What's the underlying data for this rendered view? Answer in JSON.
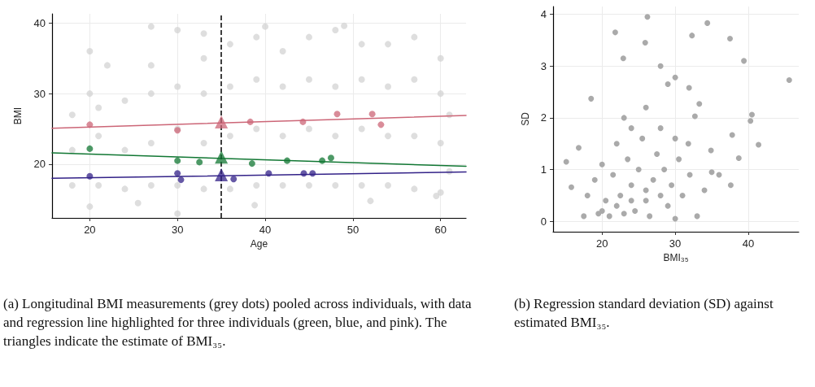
{
  "chart_data": [
    {
      "type": "scatter",
      "xlabel": "Age",
      "ylabel": "BMI",
      "xlim": [
        15.7,
        62.9
      ],
      "ylim": [
        12.4,
        41.3
      ],
      "xticks": [
        20,
        30,
        40,
        50,
        60
      ],
      "yticks": [
        20,
        30,
        40
      ],
      "grid": true,
      "marker": "circle",
      "ref_lines": [
        {
          "axis": "x",
          "value": 35,
          "color": "#000000",
          "line_style": "dashed"
        }
      ],
      "annotations": [
        "(a) Longitudinal BMI measurements (grey dots) pooled across individuals, with data and regression line highlighted for three individuals (green, blue, and pink). The triangles indicate the estimate of BMI₃₅."
      ],
      "series": [
        {
          "color": "#d3d3d3",
          "x": [
            18,
            18,
            18,
            20,
            20,
            20,
            21,
            21,
            21,
            24,
            24,
            24,
            27,
            27,
            27,
            27,
            30,
            30,
            30,
            30,
            30,
            33,
            33,
            33,
            33,
            36,
            36,
            36,
            36,
            39,
            39,
            39,
            39,
            42,
            42,
            42,
            42,
            45,
            45,
            45,
            45,
            48,
            48,
            48,
            48,
            51,
            51,
            51,
            51,
            54,
            54,
            54,
            54,
            57,
            57,
            57,
            57,
            60,
            60,
            60,
            60,
            61,
            61,
            25.5,
            38.8,
            52,
            59.5,
            27,
            40,
            49,
            33,
            22
          ],
          "values": [
            17,
            22,
            27,
            14,
            36,
            30,
            17,
            24,
            28,
            16.5,
            22,
            29,
            17,
            23,
            30,
            34,
            13,
            39,
            17,
            25,
            31,
            16.5,
            23,
            30,
            35,
            16.5,
            24,
            31,
            37,
            17,
            25,
            32,
            38,
            17,
            24,
            31,
            36,
            17,
            25,
            32,
            38,
            17,
            24,
            31,
            39,
            17,
            25,
            32,
            37,
            17,
            24,
            31,
            37,
            16.5,
            24,
            32,
            38,
            16,
            23,
            30,
            35,
            19,
            27,
            14.5,
            14.2,
            14.8,
            15.5,
            39.5,
            39.5,
            39.6,
            38.5,
            34
          ]
        },
        {
          "type": "line",
          "color": "#cc6677",
          "marker": "none",
          "x": [
            15.7,
            62.9
          ],
          "values": [
            25.1,
            26.9
          ]
        },
        {
          "type": "line",
          "color": "#117733",
          "marker": "none",
          "x": [
            15.7,
            62.9
          ],
          "values": [
            21.6,
            19.7
          ]
        },
        {
          "type": "line",
          "color": "#332288",
          "marker": "none",
          "x": [
            15.7,
            62.9
          ],
          "values": [
            18.0,
            18.9
          ]
        },
        {
          "color": "#cc6677",
          "x": [
            20,
            30,
            38.3,
            44.3,
            48.2,
            52.2,
            53.2
          ],
          "values": [
            25.6,
            24.8,
            26,
            26,
            27.1,
            27.1,
            25.6
          ]
        },
        {
          "color": "#117733",
          "x": [
            20,
            30,
            32.5,
            38.5,
            42.5,
            46.5,
            47.5
          ],
          "values": [
            22.2,
            20.5,
            20.3,
            20.1,
            20.5,
            20.5,
            20.9
          ]
        },
        {
          "color": "#332288",
          "x": [
            20,
            30,
            30.4,
            36.4,
            40.4,
            44.4,
            45.4
          ],
          "values": [
            18.3,
            18.7,
            17.8,
            17.9,
            18.7,
            18.7,
            18.7
          ]
        },
        {
          "color": "#cc6677",
          "marker": "triangle",
          "x": [
            35
          ],
          "values": [
            26
          ]
        },
        {
          "color": "#117733",
          "marker": "triangle",
          "x": [
            35
          ],
          "values": [
            21
          ]
        },
        {
          "color": "#332288",
          "marker": "triangle",
          "x": [
            35
          ],
          "values": [
            18.5
          ]
        }
      ]
    },
    {
      "type": "scatter",
      "xlabel": "BMI₃₅",
      "ylabel": "SD",
      "xlim": [
        13.3,
        46.9
      ],
      "ylim": [
        -0.2,
        4.15
      ],
      "xticks": [
        20,
        30,
        40
      ],
      "yticks": [
        0,
        1,
        2,
        3,
        4
      ],
      "grid": true,
      "marker": "circle",
      "annotations": [
        "(b) Regression standard deviation (SD) against estimated BMI₃₅."
      ],
      "series": [
        {
          "color": "#aaaaaa",
          "x": [
            26.2,
            34.4,
            21.8,
            32.3,
            37.5,
            25.9,
            22.9,
            39.4,
            28.0,
            45.6,
            30.0,
            29.0,
            31.9,
            18.5,
            40.5,
            40.3,
            41.4,
            15.1,
            38.7,
            37.8,
            37.6,
            16.8,
            15.8,
            34.9,
            33.3,
            32.7,
            17.5,
            18,
            19,
            19.5,
            20,
            20.5,
            21,
            21.5,
            22,
            22.5,
            23,
            23.5,
            24,
            24.5,
            25,
            25.5,
            26,
            26.5,
            27,
            27.5,
            28,
            28.5,
            29,
            29.5,
            30,
            30.5,
            31,
            32,
            33,
            34,
            35,
            36,
            22,
            24,
            26,
            20,
            23,
            26,
            28,
            30,
            31.8,
            24
          ],
          "values": [
            3.95,
            3.83,
            3.65,
            3.59,
            3.53,
            3.45,
            3.15,
            3.1,
            3.0,
            2.73,
            2.78,
            2.65,
            2.58,
            2.37,
            2.06,
            1.94,
            1.48,
            1.15,
            1.22,
            1.67,
            0.7,
            1.42,
            0.66,
            1.37,
            2.27,
            2.03,
            0.1,
            0.5,
            0.8,
            0.15,
            1.1,
            0.4,
            0.1,
            0.9,
            1.5,
            0.5,
            0.15,
            1.2,
            0.7,
            0.2,
            1.0,
            1.6,
            0.4,
            0.1,
            0.8,
            1.3,
            0.5,
            1.0,
            0.3,
            0.7,
            0.05,
            1.2,
            0.5,
            0.9,
            0.1,
            0.6,
            0.95,
            0.9,
            0.3,
            0.4,
            0.6,
            0.2,
            2.0,
            2.2,
            1.8,
            1.6,
            1.5,
            1.8
          ]
        }
      ]
    }
  ]
}
